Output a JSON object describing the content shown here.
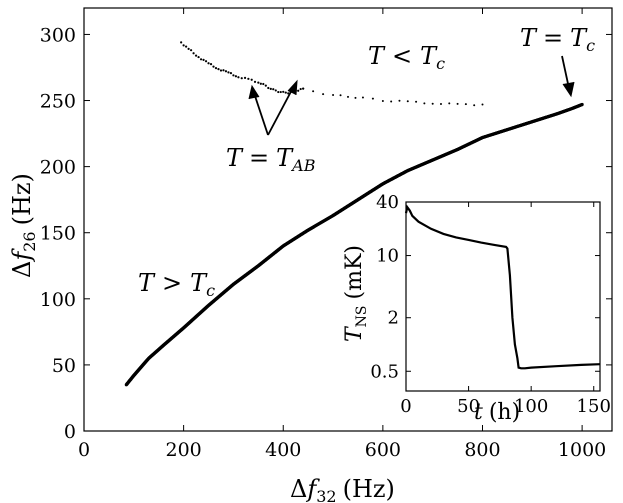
{
  "chart_data": [
    {
      "type": "scatter",
      "xlabel": "Δf32 (Hz)",
      "ylabel": "Δf26 (Hz)",
      "xlim": [
        0,
        1060
      ],
      "ylim": [
        0,
        320
      ],
      "x_ticks": [
        0,
        200,
        400,
        600,
        800,
        1000
      ],
      "y_ticks": [
        0,
        50,
        100,
        150,
        200,
        250,
        300
      ],
      "series": [
        {
          "x": [
            85,
            100,
            130,
            160,
            200,
            250,
            300,
            350,
            400,
            450,
            500,
            550,
            600,
            650,
            700,
            750,
            800,
            850,
            900,
            950,
            980,
            1000
          ],
          "y": [
            35,
            42,
            55,
            65,
            78,
            95,
            111,
            125,
            140,
            152,
            163,
            175,
            187,
            197,
            205,
            213,
            222,
            228,
            234,
            240,
            244,
            247
          ]
        },
        {
          "x": [
            195,
            210,
            230,
            250,
            270,
            290,
            310,
            330,
            350,
            360,
            370,
            380,
            390,
            400,
            410,
            420,
            430,
            440
          ],
          "y": [
            294,
            289,
            283,
            278,
            274,
            271,
            268,
            266,
            264,
            262,
            260,
            258,
            257,
            256,
            256,
            257,
            258,
            259
          ]
        },
        {
          "x": [
            440,
            460,
            480,
            500,
            530,
            560,
            600,
            650,
            700,
            750,
            800
          ],
          "y": [
            259,
            257,
            255,
            254,
            253,
            252,
            250,
            249,
            248,
            247,
            247
          ]
        }
      ],
      "annotations": [
        {
          "text": "T < Tc",
          "x": 650,
          "y": 285
        },
        {
          "text": "T = Tc",
          "x": 1000,
          "y": 300,
          "arrow_to": [
            995,
            248
          ]
        },
        {
          "text": "T = TAB",
          "x": 385,
          "y": 205,
          "arrow_to": [
            [
              360,
              261
            ],
            [
              445,
              260
            ]
          ]
        },
        {
          "text": "T > Tc",
          "x": 180,
          "y": 115
        }
      ]
    },
    {
      "type": "line",
      "xlabel": "t (h)",
      "ylabel": "TNS (mK)",
      "xlim": [
        0,
        155
      ],
      "ylim": [
        0.3,
        40
      ],
      "y_scale": "log",
      "x_ticks": [
        0,
        50,
        100,
        150
      ],
      "y_ticks": [
        0.5,
        2,
        10,
        40
      ],
      "series": [
        {
          "x": [
            0,
            1,
            3,
            5,
            10,
            20,
            30,
            40,
            50,
            60,
            70,
            80,
            81,
            83,
            85,
            87,
            89,
            90,
            92,
            95,
            100,
            120,
            140,
            155
          ],
          "y": [
            30,
            35,
            32,
            28,
            24,
            20,
            17.5,
            16,
            15,
            14,
            13.2,
            12.5,
            12,
            6,
            2,
            1,
            0.7,
            0.55,
            0.54,
            0.54,
            0.55,
            0.57,
            0.59,
            0.6
          ]
        }
      ]
    }
  ],
  "text": {
    "x_label_main": "f",
    "x_label_sub": "32",
    "x_label_unit": "(Hz)",
    "y_label_main": "f",
    "y_label_sub": "26",
    "y_label_unit": "(Hz)",
    "ann_lt_T": "T",
    "ann_lt_lt": "<",
    "ann_lt_Tc": "T",
    "ann_lt_c": "c",
    "ann_eq_T": "T",
    "ann_eq_eq": "=",
    "ann_eq_Tc": "T",
    "ann_eq_c": "c",
    "ann_ab_T": "T",
    "ann_ab_eq": "=",
    "ann_ab_T2": "T",
    "ann_ab_sub": "AB",
    "ann_gt_T": "T",
    "ann_gt_gt": ">",
    "ann_gt_Tc": "T",
    "ann_gt_c": "c",
    "inset_x_label": "t",
    "inset_x_unit": "(h)",
    "inset_y_label": "T",
    "inset_y_sub": "NS",
    "inset_y_unit": "(mK)"
  }
}
